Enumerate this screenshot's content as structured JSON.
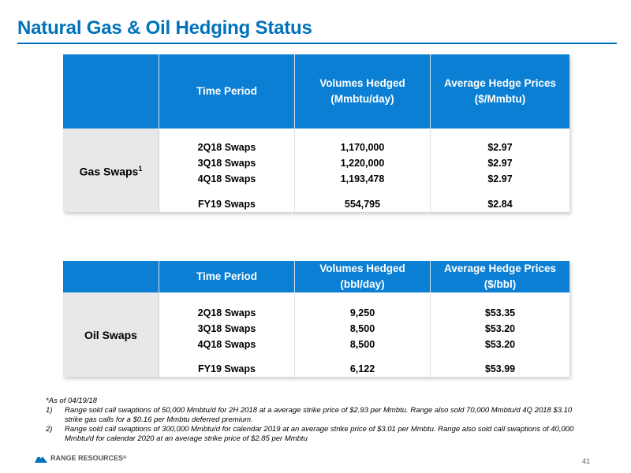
{
  "title": "Natural Gas & Oil Hedging Status",
  "gas": {
    "headers": [
      "Time Period",
      "Volumes Hedged",
      "(Mmbtu/day)",
      "Average Hedge Prices",
      "($/Mmbtu)"
    ],
    "row_label": "Gas Swaps",
    "row_label_sup": "1",
    "periods": [
      "2Q18 Swaps",
      "3Q18 Swaps",
      "4Q18 Swaps",
      "FY19 Swaps"
    ],
    "volumes": [
      "1,170,000",
      "1,220,000",
      "1,193,478",
      "554,795"
    ],
    "prices": [
      "$2.97",
      "$2.97",
      "$2.97",
      "$2.84"
    ]
  },
  "oil": {
    "headers": [
      "Time Period",
      "Volumes Hedged",
      "(bbl/day)",
      "Average Hedge Prices",
      "($/bbl)"
    ],
    "row_label": "Oil Swaps",
    "periods": [
      "2Q18 Swaps",
      "3Q18 Swaps",
      "4Q18 Swaps",
      "FY19 Swaps"
    ],
    "volumes": [
      "9,250",
      "8,500",
      "8,500",
      "6,122"
    ],
    "prices": [
      "$53.35",
      "$53.20",
      "$53.20",
      "$53.99"
    ]
  },
  "notes": {
    "asof": "*As of 04/19/18",
    "n1_num": "1)",
    "n1": "Range sold call swaptions of 50,000 Mmbtu/d for 2H 2018 at a average strike price of $2.93 per Mmbtu.  Range also sold 70,000 Mmbtu/d 4Q 2018 $3.10 strike gas calls for a $0.16 per Mmbtu deferred premium.",
    "n2_num": "2)",
    "n2": "Range sold call swaptions of 300,000 Mmbtu/d for calendar 2019 at an average strike price of $3.01 per Mmbtu.  Range also sold call swaptions of 40,000 Mmbtu/d for calendar 2020 at an average strike price of $2.85 per Mmbtu"
  },
  "footer": {
    "logo_text": "RANGE RESOURCES",
    "logo_mark": "®",
    "page_number": "41",
    "logo_color": "#0072bc"
  }
}
